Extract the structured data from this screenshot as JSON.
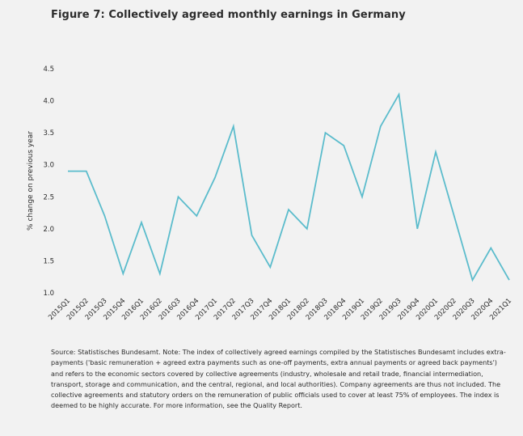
{
  "title": "Figure 7: Collectively agreed monthly earnings in Germany",
  "note": "Source: Statistisches Bundesamt. Note: The index of collectively agreed earnings compiled by the Statistisches Bundesamt includes extra-payments ('basic remuneration + agreed extra payments such as one-off payments, extra annual payments or agreed back payments') and refers to the economic sectors covered by collective agreements (industry, wholesale and retail trade, financial intermediation, transport, storage and communication, and the central, regional, and local authorities). Company agreements are thus not included. The collective agreements and statutory orders on the remuneration of public officials used to cover at least 75% of employees. The index is deemed to be highly accurate. For more information, see the Quality Report.",
  "colors": {
    "line": "#5bbccc",
    "background": "#f2f2f2",
    "text": "#2b2b2b"
  },
  "chart_data": {
    "type": "line",
    "title": "Figure 7: Collectively agreed monthly earnings in Germany",
    "ylabel": "% change on previous year",
    "xlabel": "",
    "ylim": [
      1.0,
      4.5
    ],
    "yticks": [
      "1.0",
      "1.5",
      "2.0",
      "2.5",
      "3.0",
      "3.5",
      "4.0",
      "4.5"
    ],
    "grid": false,
    "legend": false,
    "categories": [
      "2015Q1",
      "2015Q2",
      "2015Q3",
      "2015Q4",
      "2016Q1",
      "2016Q2",
      "2016Q3",
      "2016Q4",
      "2017Q1",
      "2017Q2",
      "2017Q3",
      "2017Q4",
      "2018Q1",
      "2018Q2",
      "2018Q3",
      "2018Q4",
      "2019Q1",
      "2019Q2",
      "2019Q3",
      "2019Q4",
      "2020Q1",
      "2020Q2",
      "2020Q3",
      "2020Q4",
      "2021Q1"
    ],
    "series": [
      {
        "values": [
          2.9,
          2.9,
          2.2,
          1.3,
          2.1,
          1.3,
          2.5,
          2.2,
          2.8,
          3.6,
          1.9,
          1.4,
          2.3,
          2.0,
          3.5,
          3.3,
          2.5,
          3.6,
          4.1,
          2.0,
          3.2,
          2.2,
          1.2,
          1.7,
          1.2
        ]
      }
    ]
  }
}
